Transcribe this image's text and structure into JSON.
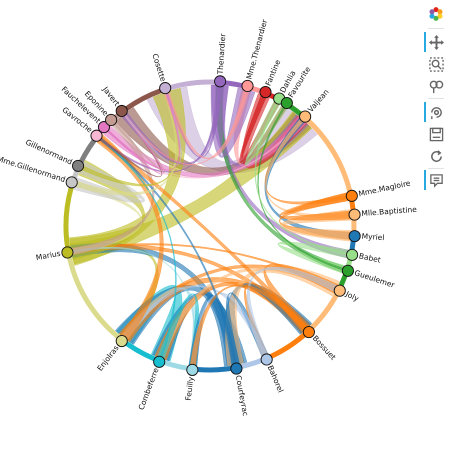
{
  "diagram": {
    "type": "chord",
    "nodes": [
      {
        "label": "Valjean",
        "color": "#ffbb78"
      },
      {
        "label": "Mme.Magloire",
        "color": "#ff7f0e"
      },
      {
        "label": "Mlle.Baptistine",
        "color": "#ffbb78"
      },
      {
        "label": "Myriel",
        "color": "#1f77b4"
      },
      {
        "label": "Babet",
        "color": "#98df8a"
      },
      {
        "label": "Gueulemer",
        "color": "#2ca02c"
      },
      {
        "label": "Joly",
        "color": "#ffbb78"
      },
      {
        "label": "Bossuet",
        "color": "#ff7f0e"
      },
      {
        "label": "Bahorel",
        "color": "#aec7e8"
      },
      {
        "label": "Courfeyrac",
        "color": "#1f77b4"
      },
      {
        "label": "Feuilly",
        "color": "#9edae5"
      },
      {
        "label": "Combeferre",
        "color": "#17becf"
      },
      {
        "label": "Enjolras",
        "color": "#dbdb8d"
      },
      {
        "label": "Marius",
        "color": "#bcbd22"
      },
      {
        "label": "Mme.Gillenormand",
        "color": "#c7c7c7"
      },
      {
        "label": "Gillenormand",
        "color": "#7f7f7f"
      },
      {
        "label": "Gavroche",
        "color": "#f7b6d2"
      },
      {
        "label": "Fauchelevent",
        "color": "#e377c2"
      },
      {
        "label": "Eponine",
        "color": "#c49c94"
      },
      {
        "label": "Javert",
        "color": "#8c564b"
      },
      {
        "label": "Cosette",
        "color": "#c5b0d5"
      },
      {
        "label": "Thenardier",
        "color": "#9467bd"
      },
      {
        "label": "Mme.Thenardier",
        "color": "#ff9896"
      },
      {
        "label": "Fantine",
        "color": "#d62728"
      },
      {
        "label": "Dahlia",
        "color": "#98df8a"
      },
      {
        "label": "Favourite",
        "color": "#2ca02c"
      }
    ],
    "links": [
      {
        "source": "Valjean",
        "target": "Cosette",
        "value": 31,
        "color": "#c5b0d5"
      },
      {
        "source": "Valjean",
        "target": "Javert",
        "value": 17,
        "color": "#8c564b"
      },
      {
        "source": "Valjean",
        "target": "Marius",
        "value": 19,
        "color": "#bcbd22"
      },
      {
        "source": "Valjean",
        "target": "Thenardier",
        "value": 12,
        "color": "#9467bd"
      },
      {
        "source": "Valjean",
        "target": "Mme.Thenardier",
        "value": 7,
        "color": "#ff9896"
      },
      {
        "source": "Valjean",
        "target": "Fantine",
        "value": 9,
        "color": "#d62728"
      },
      {
        "source": "Valjean",
        "target": "Fauchelevent",
        "value": 8,
        "color": "#e377c2"
      },
      {
        "source": "Valjean",
        "target": "Gavroche",
        "value": 1,
        "color": "#f7b6d2"
      },
      {
        "source": "Valjean",
        "target": "Mme.Magloire",
        "value": 3,
        "color": "#ff7f0e"
      },
      {
        "source": "Valjean",
        "target": "Myriel",
        "value": 5,
        "color": "#1f77b4"
      },
      {
        "source": "Valjean",
        "target": "Mlle.Baptistine",
        "value": 3,
        "color": "#ffbb78"
      },
      {
        "source": "Babet",
        "target": "Thenardier",
        "value": 6,
        "color": "#9467bd"
      },
      {
        "source": "Gueulemer",
        "target": "Thenardier",
        "value": 5,
        "color": "#2ca02c"
      },
      {
        "source": "Babet",
        "target": "Gueulemer",
        "value": 6,
        "color": "#98df8a"
      },
      {
        "source": "Marius",
        "target": "Cosette",
        "value": 21,
        "color": "#bcbd22"
      },
      {
        "source": "Marius",
        "target": "Enjolras",
        "value": 7,
        "color": "#bcbd22"
      },
      {
        "source": "Marius",
        "target": "Courfeyrac",
        "value": 9,
        "color": "#1f77b4"
      },
      {
        "source": "Marius",
        "target": "Joly",
        "value": 2,
        "color": "#ff7f0e"
      },
      {
        "source": "Marius",
        "target": "Bossuet",
        "value": 5,
        "color": "#ff7f0e"
      },
      {
        "source": "Marius",
        "target": "Gillenormand",
        "value": 12,
        "color": "#bcbd22"
      },
      {
        "source": "Marius",
        "target": "Mme.Gillenormand",
        "value": 4,
        "color": "#dbdb8d"
      },
      {
        "source": "Marius",
        "target": "Feuilly",
        "value": 1,
        "color": "#9edae5"
      },
      {
        "source": "Marius",
        "target": "Eponine",
        "value": 5,
        "color": "#c49c94"
      },
      {
        "source": "Enjolras",
        "target": "Combeferre",
        "value": 15,
        "color": "#17becf"
      },
      {
        "source": "Enjolras",
        "target": "Courfeyrac",
        "value": 17,
        "color": "#1f77b4"
      },
      {
        "source": "Enjolras",
        "target": "Bossuet",
        "value": 10,
        "color": "#ff7f0e"
      },
      {
        "source": "Enjolras",
        "target": "Joly",
        "value": 5,
        "color": "#ff7f0e"
      },
      {
        "source": "Enjolras",
        "target": "Feuilly",
        "value": 6,
        "color": "#9edae5"
      },
      {
        "source": "Enjolras",
        "target": "Bahorel",
        "value": 4,
        "color": "#aec7e8"
      },
      {
        "source": "Enjolras",
        "target": "Gavroche",
        "value": 7,
        "color": "#ff7f0e"
      },
      {
        "source": "Combeferre",
        "target": "Courfeyrac",
        "value": 13,
        "color": "#1f77b4"
      },
      {
        "source": "Combeferre",
        "target": "Bossuet",
        "value": 9,
        "color": "#ff7f0e"
      },
      {
        "source": "Combeferre",
        "target": "Joly",
        "value": 5,
        "color": "#ffbb78"
      },
      {
        "source": "Combeferre",
        "target": "Feuilly",
        "value": 5,
        "color": "#17becf"
      },
      {
        "source": "Courfeyrac",
        "target": "Bossuet",
        "value": 12,
        "color": "#1f77b4"
      },
      {
        "source": "Courfeyrac",
        "target": "Joly",
        "value": 12,
        "color": "#ffbb78"
      },
      {
        "source": "Courfeyrac",
        "target": "Bahorel",
        "value": 5,
        "color": "#1f77b4"
      },
      {
        "source": "Courfeyrac",
        "target": "Feuilly",
        "value": 6,
        "color": "#1f77b4"
      },
      {
        "source": "Bossuet",
        "target": "Joly",
        "value": 7,
        "color": "#ff7f0e"
      },
      {
        "source": "Bossuet",
        "target": "Bahorel",
        "value": 4,
        "color": "#ff7f0e"
      },
      {
        "source": "Bahorel",
        "target": "Joly",
        "value": 5,
        "color": "#aec7e8"
      },
      {
        "source": "Bahorel",
        "target": "Feuilly",
        "value": 3,
        "color": "#aec7e8"
      },
      {
        "source": "Feuilly",
        "target": "Bossuet",
        "value": 4,
        "color": "#ff7f0e"
      },
      {
        "source": "Gavroche",
        "target": "Bossuet",
        "value": 4,
        "color": "#ff7f0e"
      },
      {
        "source": "Gavroche",
        "target": "Courfeyrac",
        "value": 2,
        "color": "#1f77b4"
      },
      {
        "source": "Gavroche",
        "target": "Combeferre",
        "value": 1,
        "color": "#17becf"
      },
      {
        "source": "Gavroche",
        "target": "Thenardier",
        "value": 1,
        "color": "#9467bd"
      },
      {
        "source": "Gavroche",
        "target": "Javert",
        "value": 1,
        "color": "#8c564b"
      },
      {
        "source": "Gillenormand",
        "target": "Mme.Gillenormand",
        "value": 9,
        "color": "#c7c7c7"
      },
      {
        "source": "Gillenormand",
        "target": "Cosette",
        "value": 3,
        "color": "#bcbd22"
      },
      {
        "source": "Mme.Gillenormand",
        "target": "Cosette",
        "value": 4,
        "color": "#dbdb8d"
      },
      {
        "source": "Myriel",
        "target": "Mme.Magloire",
        "value": 6,
        "color": "#ff7f0e"
      },
      {
        "source": "Myriel",
        "target": "Mlle.Baptistine",
        "value": 8,
        "color": "#ffbb78"
      },
      {
        "source": "Mme.Magloire",
        "target": "Mlle.Baptistine",
        "value": 6,
        "color": "#ff7f0e"
      },
      {
        "source": "Thenardier",
        "target": "Mme.Thenardier",
        "value": 13,
        "color": "#9467bd"
      },
      {
        "source": "Thenardier",
        "target": "Javert",
        "value": 5,
        "color": "#9467bd"
      },
      {
        "source": "Thenardier",
        "target": "Cosette",
        "value": 2,
        "color": "#9467bd"
      },
      {
        "source": "Mme.Thenardier",
        "target": "Cosette",
        "value": 4,
        "color": "#ff9896"
      },
      {
        "source": "Mme.Thenardier",
        "target": "Javert",
        "value": 1,
        "color": "#ff9896"
      },
      {
        "source": "Fantine",
        "target": "Dahlia",
        "value": 4,
        "color": "#d62728"
      },
      {
        "source": "Fantine",
        "target": "Favourite",
        "value": 4,
        "color": "#d62728"
      },
      {
        "source": "Dahlia",
        "target": "Favourite",
        "value": 5,
        "color": "#98df8a"
      },
      {
        "source": "Favourite",
        "target": "Gueulemer",
        "value": 1,
        "color": "#2ca02c"
      },
      {
        "source": "Dahlia",
        "target": "Babet",
        "value": 1,
        "color": "#98df8a"
      },
      {
        "source": "Eponine",
        "target": "Javert",
        "value": 1,
        "color": "#c49c94"
      },
      {
        "source": "Fauchelevent",
        "target": "Javert",
        "value": 1,
        "color": "#e377c2"
      },
      {
        "source": "Cosette",
        "target": "Javert",
        "value": 1,
        "color": "#c5b0d5"
      },
      {
        "source": "Cosette",
        "target": "Fauchelevent",
        "value": 1,
        "color": "#e377c2"
      }
    ]
  },
  "toolbar": {
    "items": [
      {
        "name": "bokeh-logo-icon"
      },
      {
        "name": "pan-icon",
        "active": true
      },
      {
        "name": "box-zoom-icon"
      },
      {
        "name": "zoom-in-icon"
      },
      {
        "name": "wheel-zoom-icon",
        "active": true
      },
      {
        "name": "save-icon"
      },
      {
        "name": "reset-icon"
      },
      {
        "name": "hover-icon",
        "active": true
      }
    ]
  }
}
